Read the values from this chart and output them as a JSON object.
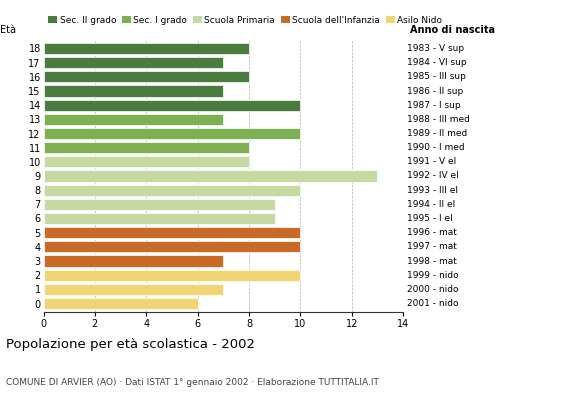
{
  "ages": [
    18,
    17,
    16,
    15,
    14,
    13,
    12,
    11,
    10,
    9,
    8,
    7,
    6,
    5,
    4,
    3,
    2,
    1,
    0
  ],
  "values": [
    8,
    7,
    8,
    7,
    10,
    7,
    10,
    8,
    8,
    13,
    10,
    9,
    9,
    10,
    10,
    7,
    10,
    7,
    6
  ],
  "right_labels": [
    "1983 - V sup",
    "1984 - VI sup",
    "1985 - III sup",
    "1986 - II sup",
    "1987 - I sup",
    "1988 - III med",
    "1989 - II med",
    "1990 - I med",
    "1991 - V el",
    "1992 - IV el",
    "1993 - III el",
    "1994 - II el",
    "1995 - I el",
    "1996 - mat",
    "1997 - mat",
    "1998 - mat",
    "1999 - nido",
    "2000 - nido",
    "2001 - nido"
  ],
  "colors": [
    "#4a7c3f",
    "#4a7c3f",
    "#4a7c3f",
    "#4a7c3f",
    "#4a7c3f",
    "#7db050",
    "#7db050",
    "#7db050",
    "#c5d9a0",
    "#c5d9a0",
    "#c5d9a0",
    "#c5d9a0",
    "#c5d9a0",
    "#c96a27",
    "#c96a27",
    "#c96a27",
    "#f2d472",
    "#f2d472",
    "#f2d472"
  ],
  "legend_labels": [
    "Sec. II grado",
    "Sec. I grado",
    "Scuola Primaria",
    "Scuola dell'Infanzia",
    "Asilo Nido"
  ],
  "legend_colors": [
    "#4a7c3f",
    "#7db050",
    "#c5d9a0",
    "#c96a27",
    "#f2d472"
  ],
  "title": "Popolazione per età scolastica - 2002",
  "subtitle": "COMUNE DI ARVIER (AO) · Dati ISTAT 1° gennaio 2002 · Elaborazione TUTTITALIA.IT",
  "ylabel_age": "Età",
  "ylabel_birth": "Anno di nascita",
  "xlim": [
    0,
    14
  ],
  "xticks": [
    0,
    2,
    4,
    6,
    8,
    10,
    12,
    14
  ],
  "grid_x": [
    2,
    4,
    6,
    8,
    10,
    12,
    14
  ],
  "bar_height": 0.78
}
